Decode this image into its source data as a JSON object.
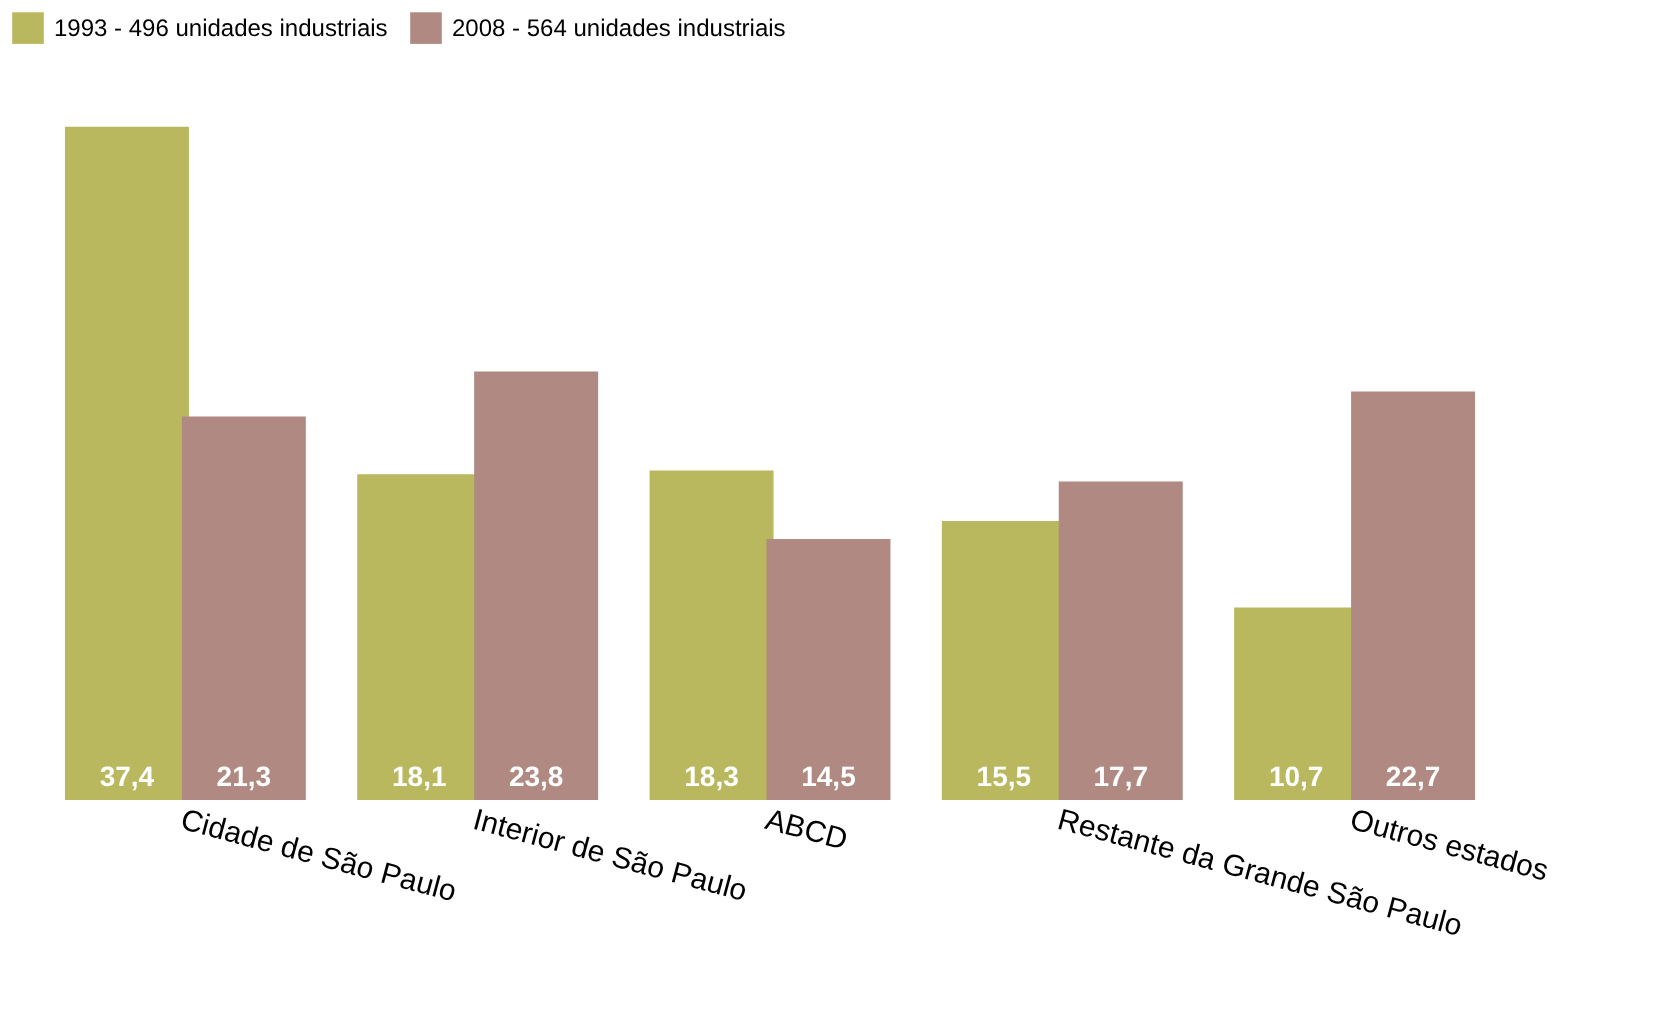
{
  "chart_data": {
    "type": "bar",
    "categories": [
      "Cidade de São Paulo",
      "Interior de São Paulo",
      "ABCD",
      "Restante da Grande São Paulo",
      "Outros estados"
    ],
    "series": [
      {
        "name": "1993 - 496 unidades industriais",
        "color": "#b9b85e",
        "values": [
          37.4,
          18.1,
          18.3,
          15.5,
          10.7
        ],
        "value_labels": [
          "37,4",
          "18,1",
          "18,3",
          "15,5",
          "10,7"
        ]
      },
      {
        "name": "2008 - 564 unidades industriais",
        "color": "#b08a82",
        "values": [
          21.3,
          23.8,
          14.5,
          17.7,
          22.7
        ],
        "value_labels": [
          "21,3",
          "23,8",
          "14,5",
          "17,7",
          "22,7"
        ]
      }
    ],
    "legend": "top",
    "grid": false
  }
}
